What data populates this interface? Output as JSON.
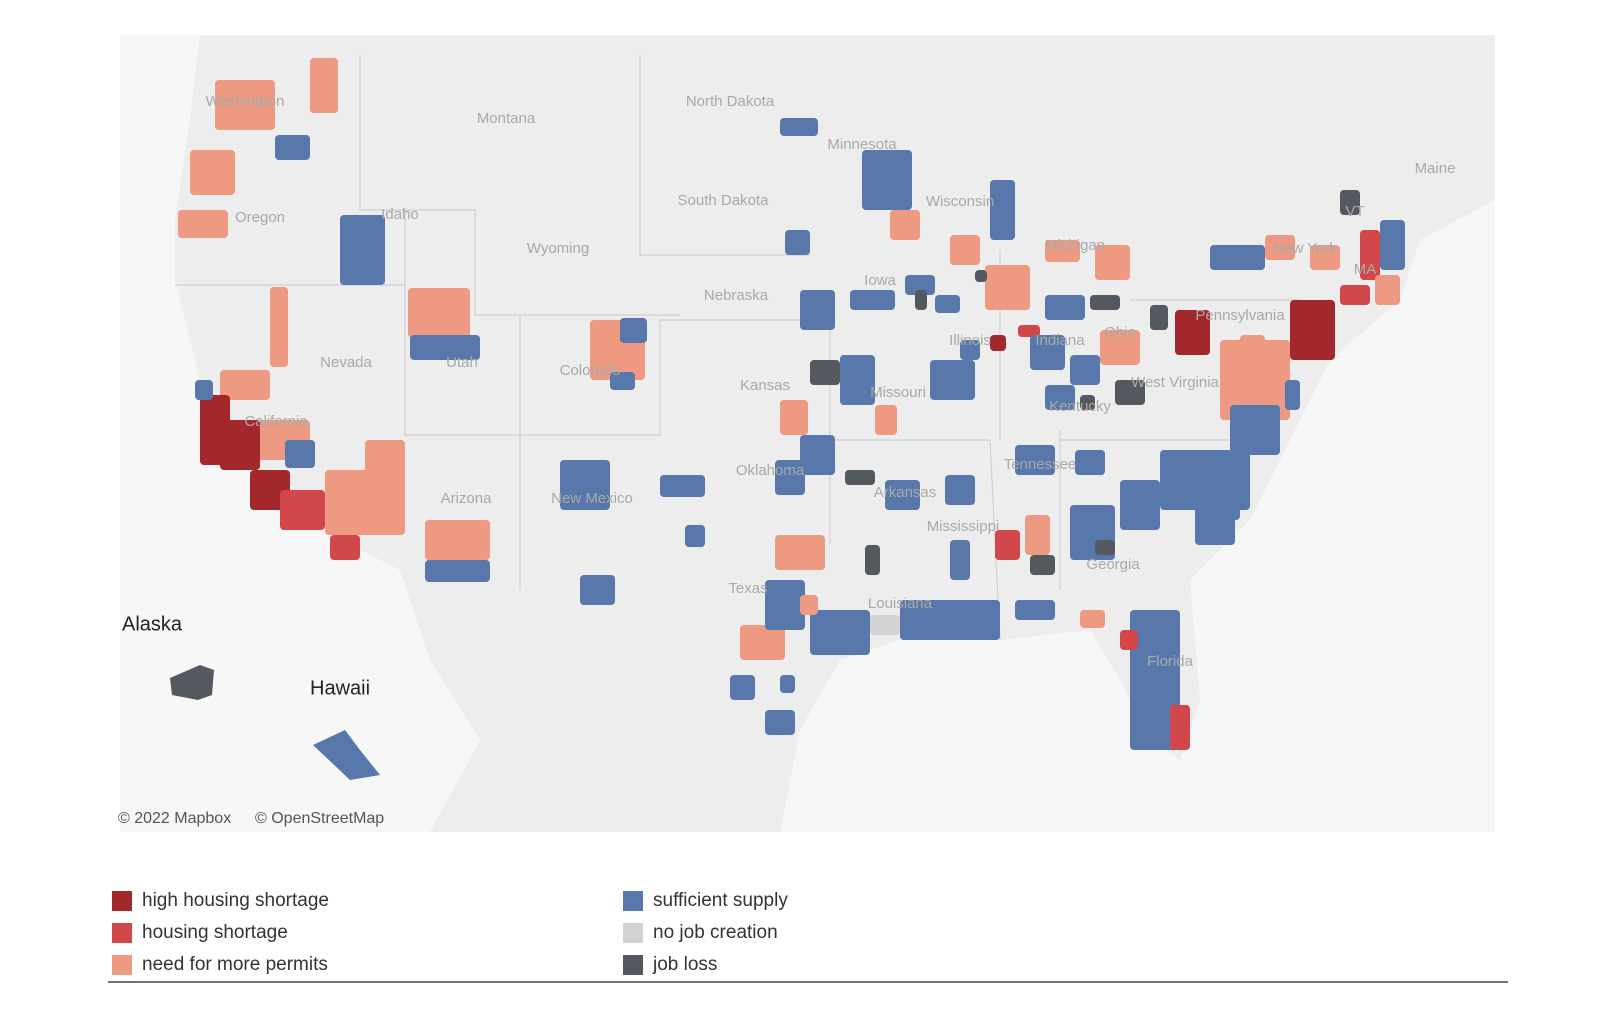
{
  "map": {
    "attribution": [
      "© 2022 Mapbox",
      "© OpenStreetMap"
    ],
    "inset_labels": [
      "Alaska",
      "Hawaii"
    ],
    "state_labels": [
      "Washington",
      "Oregon",
      "Idaho",
      "Montana",
      "North Dakota",
      "South Dakota",
      "Wyoming",
      "Nebraska",
      "Minnesota",
      "Wisconsin",
      "Iowa",
      "Michigan",
      "Illinois",
      "Indiana",
      "Ohio",
      "Pennsylvania",
      "New York",
      "VT",
      "MA",
      "Maine",
      "Nevada",
      "Utah",
      "Colorado",
      "Kansas",
      "Missouri",
      "Kentucky",
      "West Virginia",
      "California",
      "Arizona",
      "New Mexico",
      "Oklahoma",
      "Arkansas",
      "Tennessee",
      "Mississippi",
      "Georgia",
      "Texas",
      "Louisiana",
      "Florida"
    ]
  },
  "legend": [
    {
      "label": "high housing shortage",
      "color": "#a3282b"
    },
    {
      "label": "housing shortage",
      "color": "#d2474a"
    },
    {
      "label": "need for more permits",
      "color": "#ee9a82"
    },
    {
      "label": "sufficient supply",
      "color": "#5878ab"
    },
    {
      "label": "no job creation",
      "color": "#d3d3d3"
    },
    {
      "label": "job loss",
      "color": "#54585f"
    }
  ]
}
